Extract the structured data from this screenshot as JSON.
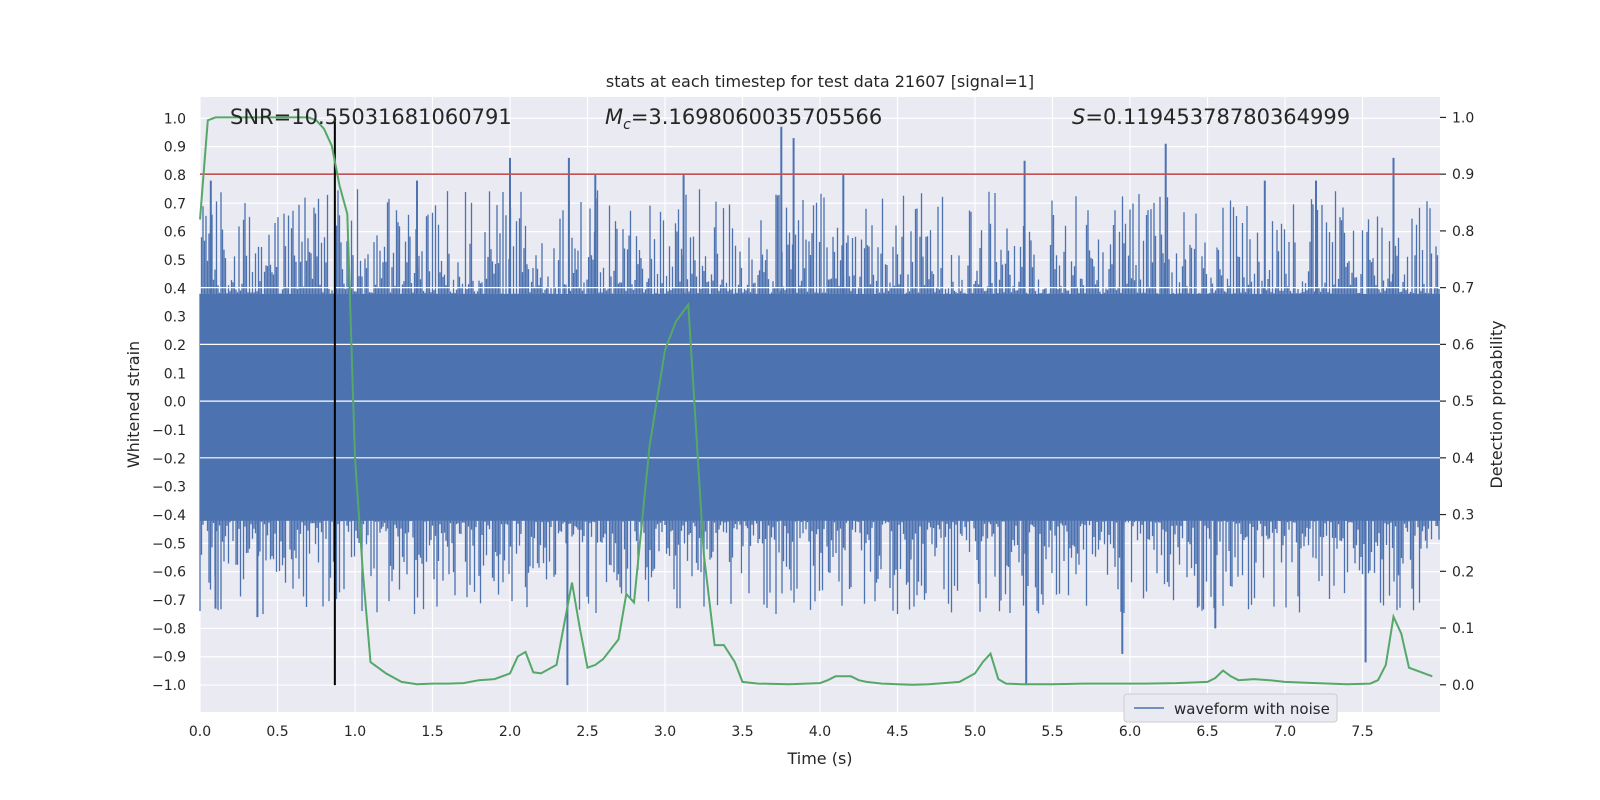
{
  "chart_data": {
    "type": "line",
    "title": "stats at each timestep for test data 21607 [signal=1]",
    "xlabel": "Time (s)",
    "ylabel": "Whitened strain",
    "y2label": "Detection probability",
    "xlim": [
      0.0,
      8.0
    ],
    "ylim": [
      -1.095,
      1.075
    ],
    "y2lim": [
      -0.048,
      1.036
    ],
    "xticks": [
      0.0,
      0.5,
      1.0,
      1.5,
      2.0,
      2.5,
      3.0,
      3.5,
      4.0,
      4.5,
      5.0,
      5.5,
      6.0,
      6.5,
      7.0,
      7.5
    ],
    "yticks": [
      -1.0,
      -0.9,
      -0.8,
      -0.7,
      -0.6,
      -0.5,
      -0.4,
      -0.3,
      -0.2,
      -0.1,
      0.0,
      0.1,
      0.2,
      0.3,
      0.4,
      0.5,
      0.6,
      0.7,
      0.8,
      0.9,
      1.0
    ],
    "y2ticks": [
      0.0,
      0.1,
      0.2,
      0.3,
      0.4,
      0.5,
      0.6,
      0.7,
      0.8,
      0.9,
      1.0
    ],
    "annotations": {
      "snr": "SNR=10.55031681060791",
      "mc_symbol": "M",
      "mc_sub": "c",
      "mc_value": "=3.1698060035705566",
      "s_symbol": "S",
      "s_value": "=0.11945378780364999"
    },
    "legend": {
      "label": "waveform with noise",
      "placement": "lower-right"
    },
    "threshold_line": {
      "y2": 0.9,
      "color": "#c44e52"
    },
    "marker_line": {
      "x": 0.87,
      "y_from": -1.0,
      "y_to": 1.0,
      "color": "#000000"
    },
    "waveform": {
      "name": "waveform with noise",
      "color": "#4c72b0",
      "spikes_pos": [
        [
          0.07,
          0.78
        ],
        [
          2.0,
          0.86
        ],
        [
          2.38,
          0.86
        ],
        [
          3.75,
          0.97
        ],
        [
          3.83,
          0.93
        ],
        [
          5.32,
          0.85
        ],
        [
          6.23,
          0.91
        ],
        [
          7.7,
          0.86
        ],
        [
          1.4,
          0.78
        ],
        [
          2.55,
          0.8
        ],
        [
          3.12,
          0.8
        ],
        [
          4.15,
          0.8
        ],
        [
          6.87,
          0.78
        ],
        [
          7.2,
          0.78
        ]
      ],
      "spikes_neg": [
        [
          2.37,
          -1.0
        ],
        [
          5.33,
          -1.0
        ],
        [
          7.52,
          -0.92
        ],
        [
          5.95,
          -0.89
        ],
        [
          0.37,
          -0.76
        ],
        [
          6.55,
          -0.8
        ],
        [
          0.1,
          -0.73
        ]
      ]
    },
    "series": [
      {
        "name": "detection probability",
        "color": "#55a868",
        "axis": "right",
        "x": [
          0.0,
          0.05,
          0.1,
          0.2,
          0.3,
          0.5,
          0.7,
          0.75,
          0.8,
          0.85,
          0.9,
          0.95,
          1.0,
          1.05,
          1.1,
          1.2,
          1.3,
          1.4,
          1.5,
          1.6,
          1.7,
          1.8,
          1.9,
          2.0,
          2.05,
          2.1,
          2.15,
          2.2,
          2.3,
          2.4,
          2.45,
          2.5,
          2.55,
          2.6,
          2.7,
          2.75,
          2.8,
          2.9,
          3.0,
          3.07,
          3.15,
          3.25,
          3.32,
          3.38,
          3.45,
          3.5,
          3.6,
          3.8,
          4.0,
          4.05,
          4.1,
          4.2,
          4.25,
          4.3,
          4.4,
          4.5,
          4.6,
          4.7,
          4.8,
          4.9,
          5.0,
          5.05,
          5.1,
          5.15,
          5.2,
          5.3,
          5.5,
          5.7,
          5.9,
          6.1,
          6.3,
          6.5,
          6.55,
          6.6,
          6.65,
          6.7,
          6.8,
          6.9,
          7.0,
          7.2,
          7.4,
          7.55,
          7.6,
          7.65,
          7.7,
          7.75,
          7.8,
          7.9,
          7.95
        ],
        "values": [
          0.82,
          0.995,
          1.0,
          1.0,
          1.0,
          1.0,
          1.0,
          0.995,
          0.98,
          0.95,
          0.88,
          0.83,
          0.4,
          0.2,
          0.04,
          0.02,
          0.005,
          0.001,
          0.002,
          0.002,
          0.003,
          0.008,
          0.01,
          0.02,
          0.05,
          0.058,
          0.022,
          0.02,
          0.035,
          0.18,
          0.1,
          0.03,
          0.035,
          0.045,
          0.08,
          0.16,
          0.145,
          0.42,
          0.59,
          0.64,
          0.67,
          0.23,
          0.07,
          0.07,
          0.04,
          0.005,
          0.002,
          0.001,
          0.003,
          0.008,
          0.015,
          0.015,
          0.008,
          0.005,
          0.002,
          0.001,
          0.0,
          0.001,
          0.003,
          0.005,
          0.02,
          0.04,
          0.055,
          0.01,
          0.002,
          0.001,
          0.001,
          0.002,
          0.002,
          0.002,
          0.003,
          0.005,
          0.012,
          0.025,
          0.015,
          0.008,
          0.01,
          0.008,
          0.005,
          0.003,
          0.001,
          0.002,
          0.008,
          0.035,
          0.12,
          0.09,
          0.03,
          0.02,
          0.015
        ]
      }
    ]
  }
}
